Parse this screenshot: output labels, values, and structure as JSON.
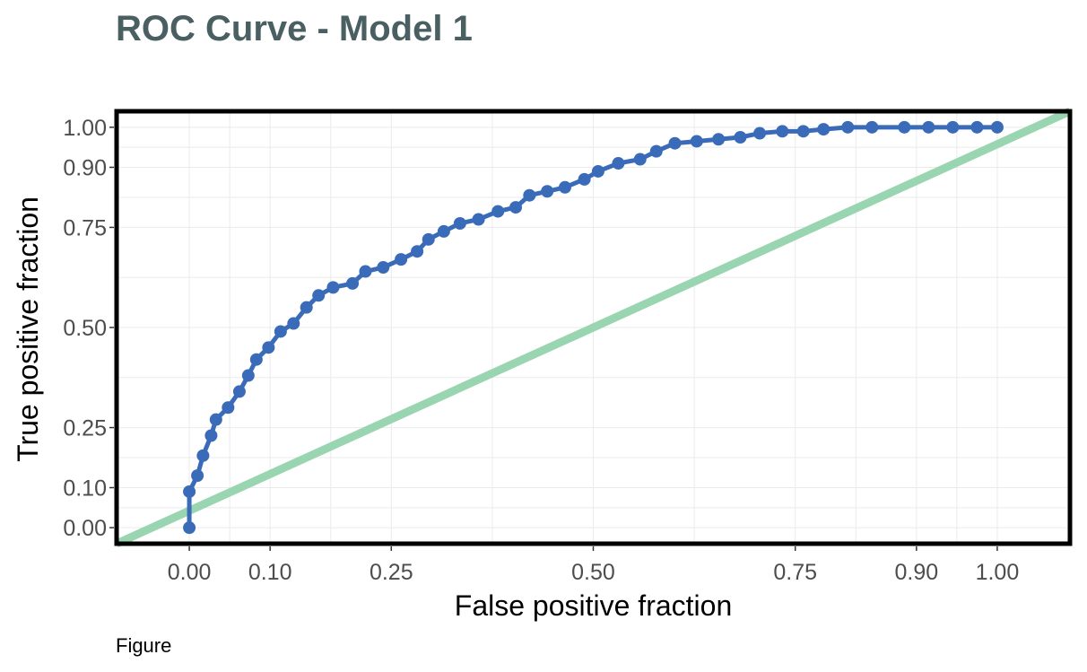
{
  "caption": "Figure",
  "chart_data": {
    "type": "line",
    "title": "ROC Curve - Model 1",
    "xlabel": "False positive fraction",
    "ylabel": "True positive fraction",
    "xlim": [
      -0.09,
      1.09
    ],
    "ylim": [
      -0.04,
      1.04
    ],
    "x_ticks": [
      0.0,
      0.1,
      0.25,
      0.5,
      0.75,
      0.9,
      1.0
    ],
    "x_tick_labels": [
      "0.00",
      "0.10",
      "0.25",
      "0.50",
      "0.75",
      "0.90",
      "1.00"
    ],
    "y_ticks": [
      0.0,
      0.1,
      0.25,
      0.5,
      0.75,
      0.9,
      1.0
    ],
    "y_tick_labels": [
      "0.00",
      "0.10",
      "0.25",
      "0.50",
      "0.75",
      "0.90",
      "1.00"
    ],
    "grid": true,
    "colors": {
      "roc": "#3a6bb8",
      "diagonal": "#99d5b0",
      "title": "#4a5f61",
      "frame": "#000000"
    },
    "series": [
      {
        "values": [
          [
            0.0,
            0.0
          ],
          [
            0.0,
            0.09
          ],
          [
            0.01,
            0.13
          ],
          [
            0.017,
            0.18
          ],
          [
            0.027,
            0.23
          ],
          [
            0.033,
            0.27
          ],
          [
            0.048,
            0.3
          ],
          [
            0.062,
            0.34
          ],
          [
            0.073,
            0.38
          ],
          [
            0.083,
            0.42
          ],
          [
            0.098,
            0.45
          ],
          [
            0.113,
            0.49
          ],
          [
            0.129,
            0.51
          ],
          [
            0.145,
            0.55
          ],
          [
            0.16,
            0.58
          ],
          [
            0.178,
            0.6
          ],
          [
            0.202,
            0.61
          ],
          [
            0.218,
            0.64
          ],
          [
            0.24,
            0.65
          ],
          [
            0.262,
            0.67
          ],
          [
            0.282,
            0.69
          ],
          [
            0.296,
            0.72
          ],
          [
            0.315,
            0.74
          ],
          [
            0.335,
            0.76
          ],
          [
            0.358,
            0.77
          ],
          [
            0.382,
            0.79
          ],
          [
            0.404,
            0.8
          ],
          [
            0.421,
            0.83
          ],
          [
            0.443,
            0.84
          ],
          [
            0.465,
            0.85
          ],
          [
            0.489,
            0.87
          ],
          [
            0.506,
            0.89
          ],
          [
            0.531,
            0.91
          ],
          [
            0.558,
            0.92
          ],
          [
            0.578,
            0.94
          ],
          [
            0.601,
            0.96
          ],
          [
            0.628,
            0.965
          ],
          [
            0.655,
            0.97
          ],
          [
            0.682,
            0.975
          ],
          [
            0.706,
            0.985
          ],
          [
            0.734,
            0.99
          ],
          [
            0.76,
            0.99
          ],
          [
            0.785,
            0.995
          ],
          [
            0.815,
            1.0
          ],
          [
            0.845,
            1.0
          ],
          [
            0.885,
            1.0
          ],
          [
            0.915,
            1.0
          ],
          [
            0.945,
            1.0
          ],
          [
            0.975,
            1.0
          ],
          [
            1.0,
            1.0
          ]
        ]
      },
      {
        "values": [
          [
            -0.09,
            -0.04
          ],
          [
            1.09,
            1.04
          ]
        ]
      }
    ]
  }
}
